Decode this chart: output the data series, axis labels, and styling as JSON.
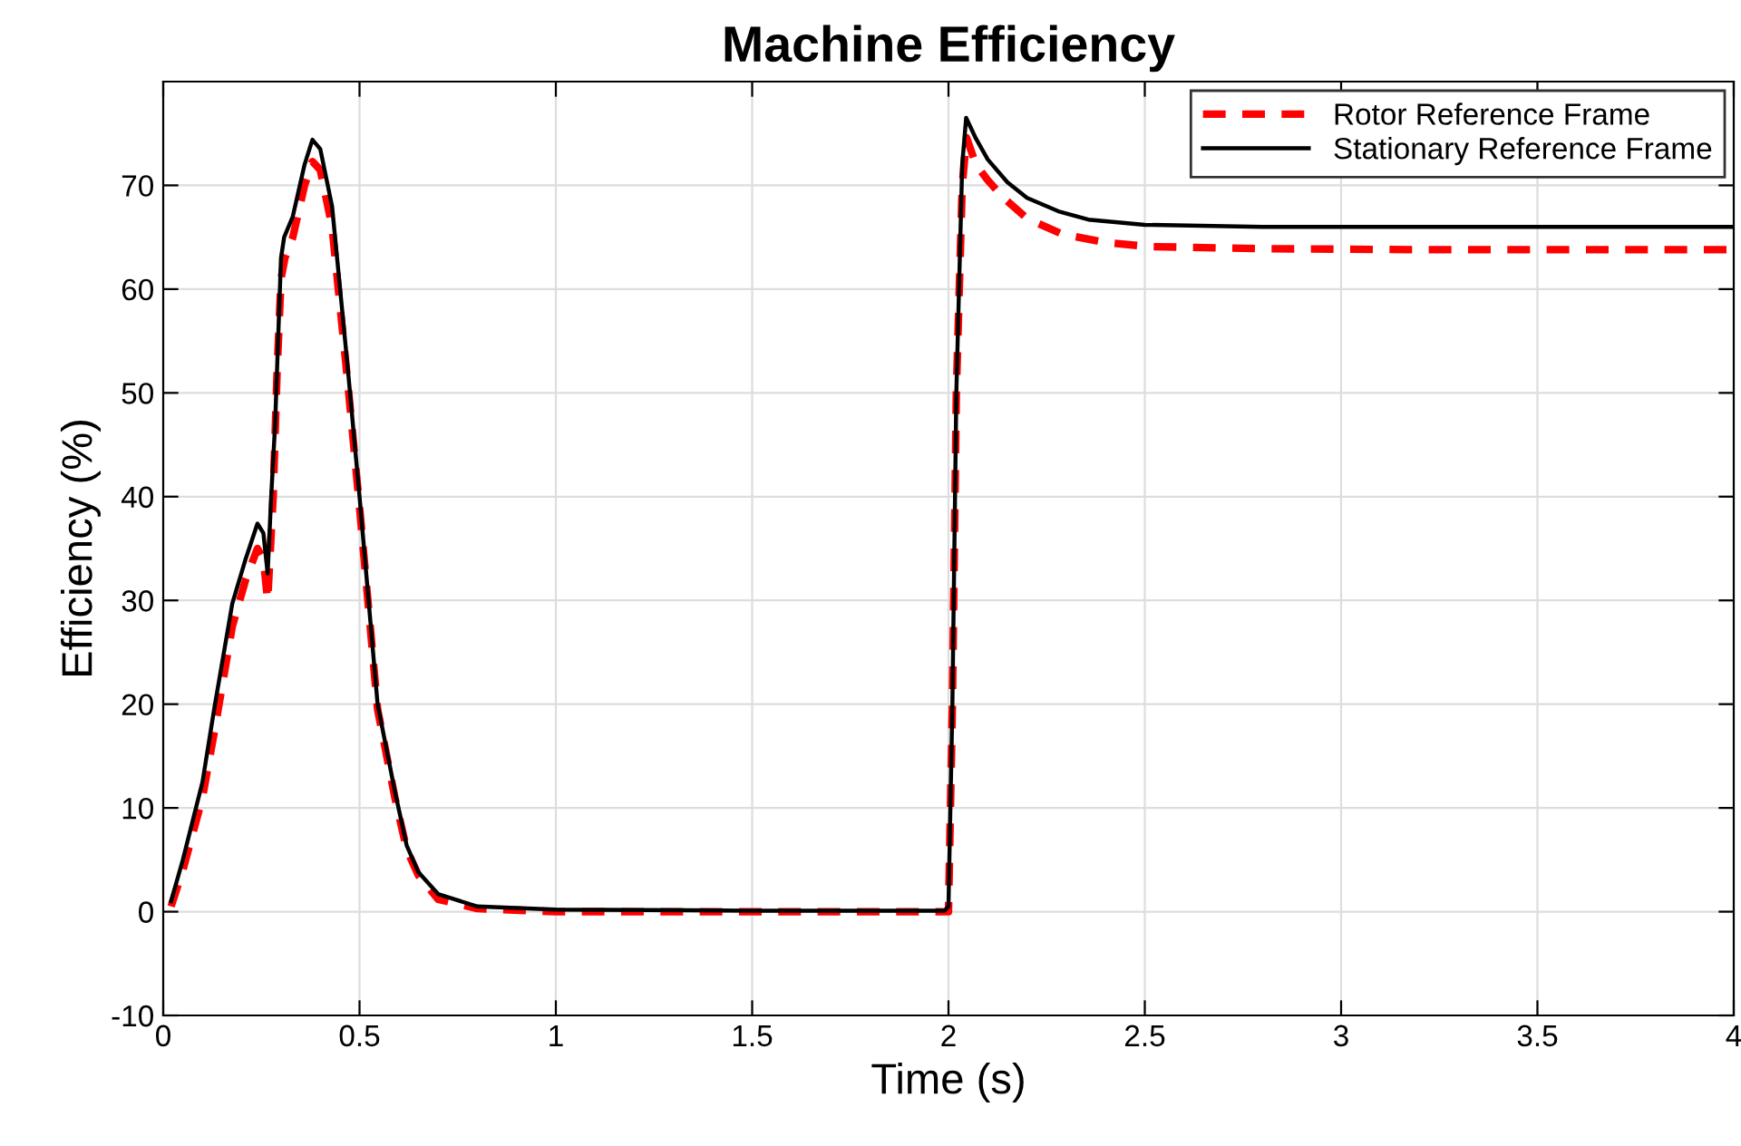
{
  "chart_data": {
    "type": "line",
    "title": "Machine Efficiency",
    "xlabel": "Time (s)",
    "ylabel": "Efficiency (%)",
    "xlim": [
      0,
      4
    ],
    "ylim": [
      -10,
      80
    ],
    "xticks": [
      0,
      0.5,
      1,
      1.5,
      2,
      2.5,
      3,
      3.5,
      4
    ],
    "yticks": [
      -10,
      0,
      10,
      20,
      30,
      40,
      50,
      60,
      70
    ],
    "grid": true,
    "legend": "top right",
    "marker": "none",
    "series": [
      {
        "name": "Rotor Reference Frame",
        "color": "#ff0000",
        "line_style": "dashed",
        "x": [
          0.02,
          0.05,
          0.1,
          0.131,
          0.176,
          0.21,
          0.24,
          0.255,
          0.266,
          0.28,
          0.29,
          0.3,
          0.31,
          0.33,
          0.36,
          0.38,
          0.4,
          0.43,
          0.47,
          0.5,
          0.546,
          0.59,
          0.62,
          0.65,
          0.7,
          0.8,
          1.0,
          1.5,
          1.99,
          2.0,
          2.01,
          2.02,
          2.035,
          2.046,
          2.07,
          2.1,
          2.14,
          2.2,
          2.29,
          2.4,
          2.51,
          2.8,
          3.2,
          4.0
        ],
        "values": [
          0.5,
          4,
          11,
          17.5,
          27.5,
          32,
          35,
          34,
          30,
          40,
          52,
          61,
          63,
          65,
          70,
          72.3,
          71.5,
          66,
          51,
          39,
          19.5,
          11,
          6,
          3.5,
          1.2,
          0.3,
          0,
          0,
          0,
          0,
          20,
          50,
          70,
          74.6,
          72,
          70.5,
          68.8,
          66.8,
          65.3,
          64.5,
          64.1,
          63.9,
          63.8,
          63.8
        ]
      },
      {
        "name": "Stationary Reference Frame",
        "color": "#000000",
        "line_style": "solid",
        "x": [
          0.02,
          0.05,
          0.1,
          0.131,
          0.176,
          0.21,
          0.24,
          0.255,
          0.266,
          0.275,
          0.285,
          0.3,
          0.308,
          0.33,
          0.36,
          0.38,
          0.4,
          0.43,
          0.47,
          0.5,
          0.546,
          0.59,
          0.62,
          0.65,
          0.7,
          0.8,
          1.0,
          1.5,
          1.99,
          2.0,
          2.01,
          2.02,
          2.035,
          2.045,
          2.07,
          2.1,
          2.15,
          2.2,
          2.28,
          2.356,
          2.5,
          2.8,
          3.2,
          4.0
        ],
        "values": [
          1,
          5,
          12.5,
          19.8,
          29.7,
          34,
          37.4,
          36.5,
          32.6,
          40,
          47,
          63,
          65,
          67,
          72,
          74.4,
          73.5,
          68,
          52.4,
          40,
          20,
          11.6,
          6.4,
          3.8,
          1.7,
          0.5,
          0.2,
          0.1,
          0.1,
          0.5,
          20,
          50,
          72,
          76.5,
          74.5,
          72.5,
          70.3,
          68.8,
          67.5,
          66.7,
          66.2,
          66,
          66,
          66
        ]
      }
    ]
  }
}
